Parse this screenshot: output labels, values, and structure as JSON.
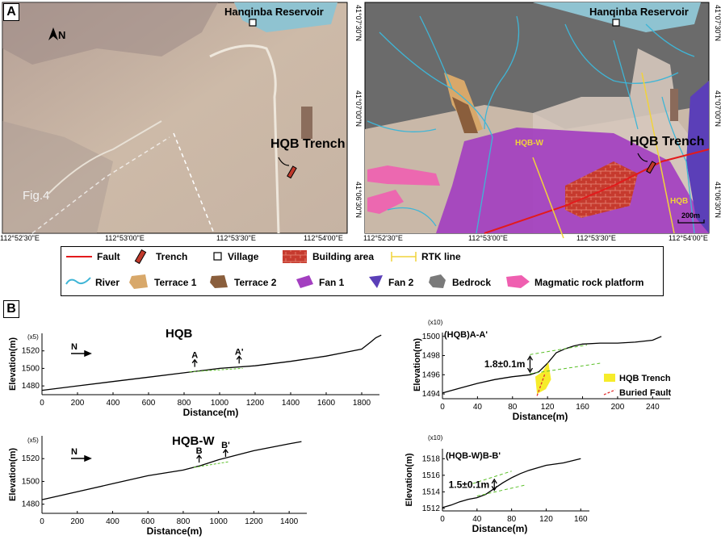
{
  "panel_a": {
    "label": "A",
    "north": "N",
    "reservoir": "Hanqinba Reservoir",
    "trench": "HQB Trench",
    "fig_ref": "Fig.4",
    "scale": "200m",
    "rtk_labels": [
      "HQB-W",
      "HQB"
    ],
    "lon_ticks": [
      "112°52'30\"E",
      "112°53'00\"E",
      "112°53'30\"E",
      "112°54'00\"E"
    ],
    "lat_ticks": [
      "41°07'30\"N",
      "41°07'00\"N",
      "41°06'30\"N"
    ]
  },
  "legend": [
    {
      "key": "fault",
      "label": "Fault"
    },
    {
      "key": "trench",
      "label": "Trench"
    },
    {
      "key": "village",
      "label": "Village"
    },
    {
      "key": "building",
      "label": "Building area"
    },
    {
      "key": "rtk",
      "label": "RTK line"
    },
    {
      "key": "river",
      "label": "River"
    },
    {
      "key": "terrace1",
      "label": "Terrace 1"
    },
    {
      "key": "terrace2",
      "label": "Terrace 2"
    },
    {
      "key": "fan1",
      "label": "Fan 1"
    },
    {
      "key": "fan2",
      "label": "Fan 2"
    },
    {
      "key": "bedrock",
      "label": "Bedrock"
    },
    {
      "key": "magmatic",
      "label": "Magmatic rock platform"
    }
  ],
  "colors": {
    "fault": "#e31a1c",
    "fan1": "#a33fc0",
    "fan2": "#5b3fb8",
    "bedrock": "#707070",
    "terrace1": "#d8a86a",
    "terrace2": "#8a5e3c",
    "magmatic": "#ef5fb0",
    "river": "#3fb5d6",
    "rtk": "#f1d33a",
    "building": "#c0392b",
    "trench": "#c0392b",
    "scarp": "#5cc02a",
    "buried": "#e03030",
    "trench_fill": "#f6ec2a"
  },
  "panel_b": {
    "label": "B",
    "north": "N",
    "ylabel": "Elevation(m)",
    "xlabel": "Distance(m)",
    "hqb": {
      "title": "HQB",
      "exag": "(x5)",
      "marker_a": "A",
      "marker_b": "A'"
    },
    "hqbw": {
      "title": "HQB-W",
      "exag": "(x5)",
      "marker_a": "B",
      "marker_b": "B'"
    },
    "aa": {
      "title": "(HQB)A-A'",
      "exag": "(x10)",
      "offset": "1.8±0.1m",
      "legend_trench": "HQB Trench",
      "legend_fault": "Buried Fault"
    },
    "bb": {
      "title": "(HQB-W)B-B'",
      "exag": "(x10)",
      "offset": "1.5±0.1m"
    }
  },
  "chart_data": [
    {
      "type": "line",
      "title": "HQB",
      "xlabel": "Distance(m)",
      "ylabel": "Elevation(m)",
      "xlim": [
        0,
        1900
      ],
      "ylim": [
        1470,
        1540
      ],
      "grid": false,
      "xticks": [
        0,
        200,
        400,
        600,
        800,
        1000,
        1200,
        1400,
        1600,
        1800
      ],
      "yticks": [
        1480,
        1500,
        1520
      ],
      "x": [
        0,
        200,
        400,
        600,
        800,
        1000,
        1200,
        1400,
        1600,
        1700,
        1800,
        1850,
        1880,
        1910
      ],
      "y": [
        1475,
        1480,
        1485,
        1490,
        1495,
        1500,
        1503,
        1508,
        1514,
        1518,
        1522,
        1530,
        1535,
        1538
      ]
    },
    {
      "type": "line",
      "title": "HQB-W",
      "xlabel": "Distance(m)",
      "ylabel": "Elevation(m)",
      "xlim": [
        0,
        1500
      ],
      "ylim": [
        1472,
        1540
      ],
      "grid": false,
      "xticks": [
        0,
        200,
        400,
        600,
        800,
        1000,
        1200,
        1400
      ],
      "yticks": [
        1480,
        1500,
        1520
      ],
      "x": [
        0,
        200,
        400,
        600,
        800,
        900,
        1000,
        1100,
        1200,
        1300,
        1400,
        1470
      ],
      "y": [
        1484,
        1491,
        1498,
        1505,
        1510,
        1514,
        1519,
        1523,
        1527,
        1530,
        1533,
        1535
      ]
    },
    {
      "type": "line",
      "title": "(HQB)A-A'",
      "xlabel": "Distance(m)",
      "ylabel": "",
      "xlim": [
        0,
        260
      ],
      "ylim": [
        1493.5,
        1500.4
      ],
      "grid": false,
      "xticks": [
        0,
        40,
        80,
        120,
        160,
        200,
        240
      ],
      "yticks": [
        1494,
        1496,
        1498,
        1500
      ],
      "x": [
        0,
        20,
        40,
        60,
        80,
        100,
        110,
        120,
        130,
        140,
        150,
        160,
        180,
        200,
        220,
        240,
        250
      ],
      "y": [
        1494.1,
        1494.6,
        1495.1,
        1495.5,
        1495.8,
        1496.0,
        1496.3,
        1497.2,
        1498.3,
        1498.7,
        1499.0,
        1499.2,
        1499.3,
        1499.3,
        1499.4,
        1499.6,
        1500.0
      ]
    },
    {
      "type": "line",
      "title": "(HQB-W)B-B'",
      "xlabel": "Distance(m)",
      "ylabel": "Elevation(m)",
      "xlim": [
        0,
        170
      ],
      "ylim": [
        1511.7,
        1519.2
      ],
      "grid": false,
      "xticks": [
        0,
        40,
        80,
        120,
        160
      ],
      "yticks": [
        1512,
        1514,
        1516,
        1518
      ],
      "x": [
        0,
        10,
        20,
        30,
        40,
        50,
        60,
        70,
        80,
        90,
        100,
        110,
        120,
        140,
        160
      ],
      "y": [
        1512.1,
        1512.4,
        1512.8,
        1513.1,
        1513.3,
        1513.7,
        1514.4,
        1515.1,
        1515.7,
        1516.2,
        1516.6,
        1516.9,
        1517.2,
        1517.5,
        1518.0
      ]
    }
  ]
}
